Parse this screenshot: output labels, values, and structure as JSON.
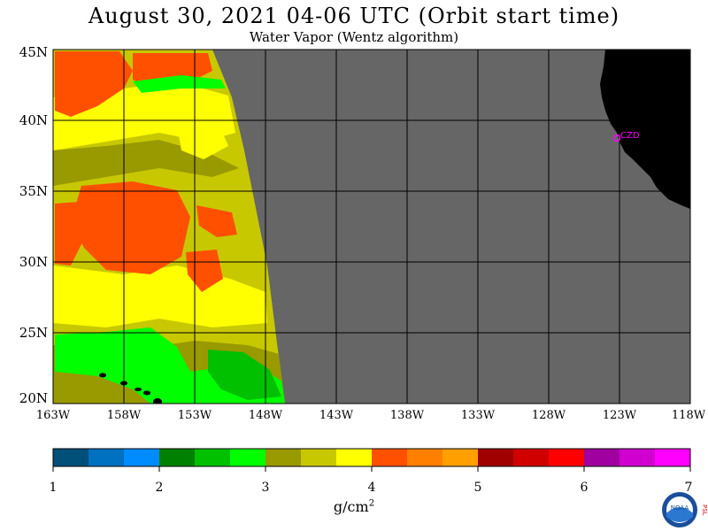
{
  "title": "August 30, 2021  04-06 UTC  (Orbit start time)",
  "subtitle": "Water Vapor (Wentz algorithm)",
  "lat_labels": [
    "45N",
    "40N",
    "35N",
    "30N",
    "25N",
    "20N"
  ],
  "lon_labels": [
    "163W",
    "158W",
    "153W",
    "148W",
    "143W",
    "138W",
    "133W",
    "128W",
    "123W",
    "118W"
  ],
  "station_label": "CZD",
  "colorbar": {
    "tick_labels": [
      "1",
      "2",
      "3",
      "4",
      "5",
      "6",
      "7"
    ],
    "units_text": "g/cm",
    "units_sup": "2",
    "colors": [
      "#00507a",
      "#0070c0",
      "#008cff",
      "#008000",
      "#00c000",
      "#00ff00",
      "#999900",
      "#c8c800",
      "#ffff00",
      "#ff5000",
      "#ff8000",
      "#ffa000",
      "#a00000",
      "#d00000",
      "#ff0000",
      "#a000a0",
      "#d000d0",
      "#ff00ff"
    ]
  },
  "map": {
    "no_data_color": "#666666",
    "land_color": "#000000",
    "grid_color": "#000000",
    "station_color": "#ff00ff"
  },
  "logo": {
    "noaa_text": "NOAA",
    "side_text": "PSL"
  }
}
